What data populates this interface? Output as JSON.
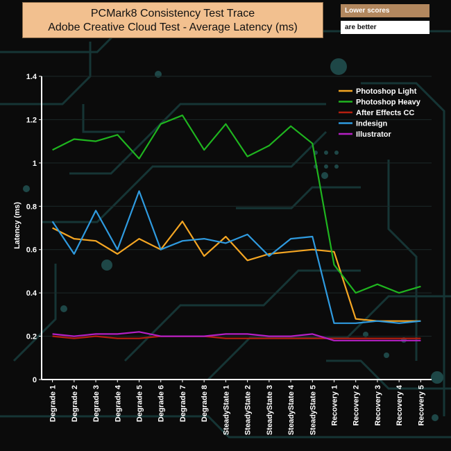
{
  "notes": {
    "line1": "Lower scores",
    "line2": "are better"
  },
  "chart_data": {
    "type": "line",
    "title": "PCMark8 Consistency Test Trace",
    "subtitle": "Adobe Creative Cloud Test -  Average Latency (ms)",
    "xlabel": "",
    "ylabel": "Latency (ms)",
    "ylim": [
      0,
      1.4
    ],
    "yticks": [
      0,
      0.2,
      0.4,
      0.6,
      0.8,
      1,
      1.2,
      1.4
    ],
    "legend_position": "top-right",
    "categories": [
      "Degrade 1",
      "Degrade 2",
      "Degrade 3",
      "Degrade 4",
      "Degrade 5",
      "Degrade 6",
      "Degrade 7",
      "Degrade 8",
      "SteadyState 1",
      "SteadyState 2",
      "SteadyState 3",
      "SteadyState 4",
      "SteadyState 5",
      "Recovery 1",
      "Recovery 2",
      "Recovery 3",
      "Recovery 4",
      "Recovery 5"
    ],
    "series": [
      {
        "name": "Photoshop Light",
        "color": "#f5a623",
        "values": [
          0.7,
          0.65,
          0.64,
          0.58,
          0.65,
          0.6,
          0.73,
          0.57,
          0.66,
          0.55,
          0.58,
          0.59,
          0.6,
          0.59,
          0.28,
          0.27,
          0.27,
          0.27
        ]
      },
      {
        "name": " Photoshop Heavy",
        "color": "#1fb51f",
        "values": [
          1.06,
          1.11,
          1.1,
          1.13,
          1.02,
          1.18,
          1.22,
          1.06,
          1.18,
          1.03,
          1.08,
          1.17,
          1.09,
          0.53,
          0.4,
          0.44,
          0.4,
          0.43
        ]
      },
      {
        "name": "After Effects CC",
        "color": "#b51f10",
        "values": [
          0.2,
          0.19,
          0.2,
          0.19,
          0.19,
          0.2,
          0.2,
          0.2,
          0.19,
          0.19,
          0.19,
          0.19,
          0.19,
          0.19,
          0.19,
          0.19,
          0.19,
          0.19
        ]
      },
      {
        "name": "Indesign",
        "color": "#2f9be0",
        "values": [
          0.73,
          0.58,
          0.78,
          0.6,
          0.87,
          0.6,
          0.64,
          0.65,
          0.63,
          0.67,
          0.57,
          0.65,
          0.66,
          0.26,
          0.26,
          0.27,
          0.26,
          0.27
        ]
      },
      {
        "name": "Illustrator",
        "color": "#b51fc4",
        "values": [
          0.21,
          0.2,
          0.21,
          0.21,
          0.22,
          0.2,
          0.2,
          0.2,
          0.21,
          0.21,
          0.2,
          0.2,
          0.21,
          0.18,
          0.18,
          0.18,
          0.18,
          0.18
        ]
      }
    ]
  }
}
